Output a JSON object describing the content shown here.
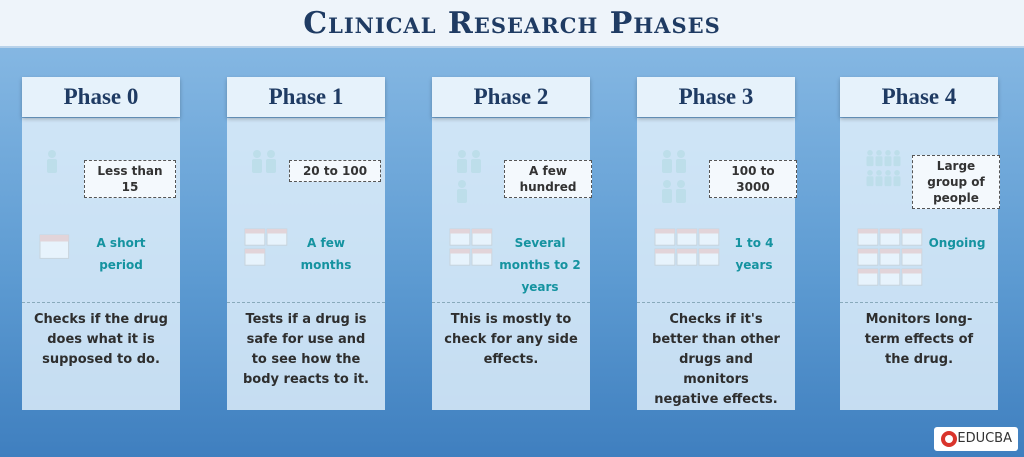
{
  "header": {
    "title": "Clinical Research Phases"
  },
  "phases": [
    {
      "name": "Phase 0",
      "participants": "Less than 15",
      "duration": "A short period",
      "description": "Checks if the drug does what it is supposed to do."
    },
    {
      "name": "Phase 1",
      "participants": "20 to 100",
      "duration": "A few months",
      "description": "Tests if a drug is safe for use and to see how the body reacts to it."
    },
    {
      "name": "Phase 2",
      "participants": "A few hundred",
      "duration": "Several months to 2 years",
      "description": "This is mostly to check for any side effects."
    },
    {
      "name": "Phase 3",
      "participants": "100 to 3000",
      "duration": "1 to 4 years",
      "description": "Checks if it's better than other drugs and monitors negative effects."
    },
    {
      "name": "Phase 4",
      "participants": "Large group of people",
      "duration": "Ongoing",
      "description": "Monitors long-term effects of the drug."
    }
  ],
  "footer": {
    "brand": "EDUCBA"
  }
}
